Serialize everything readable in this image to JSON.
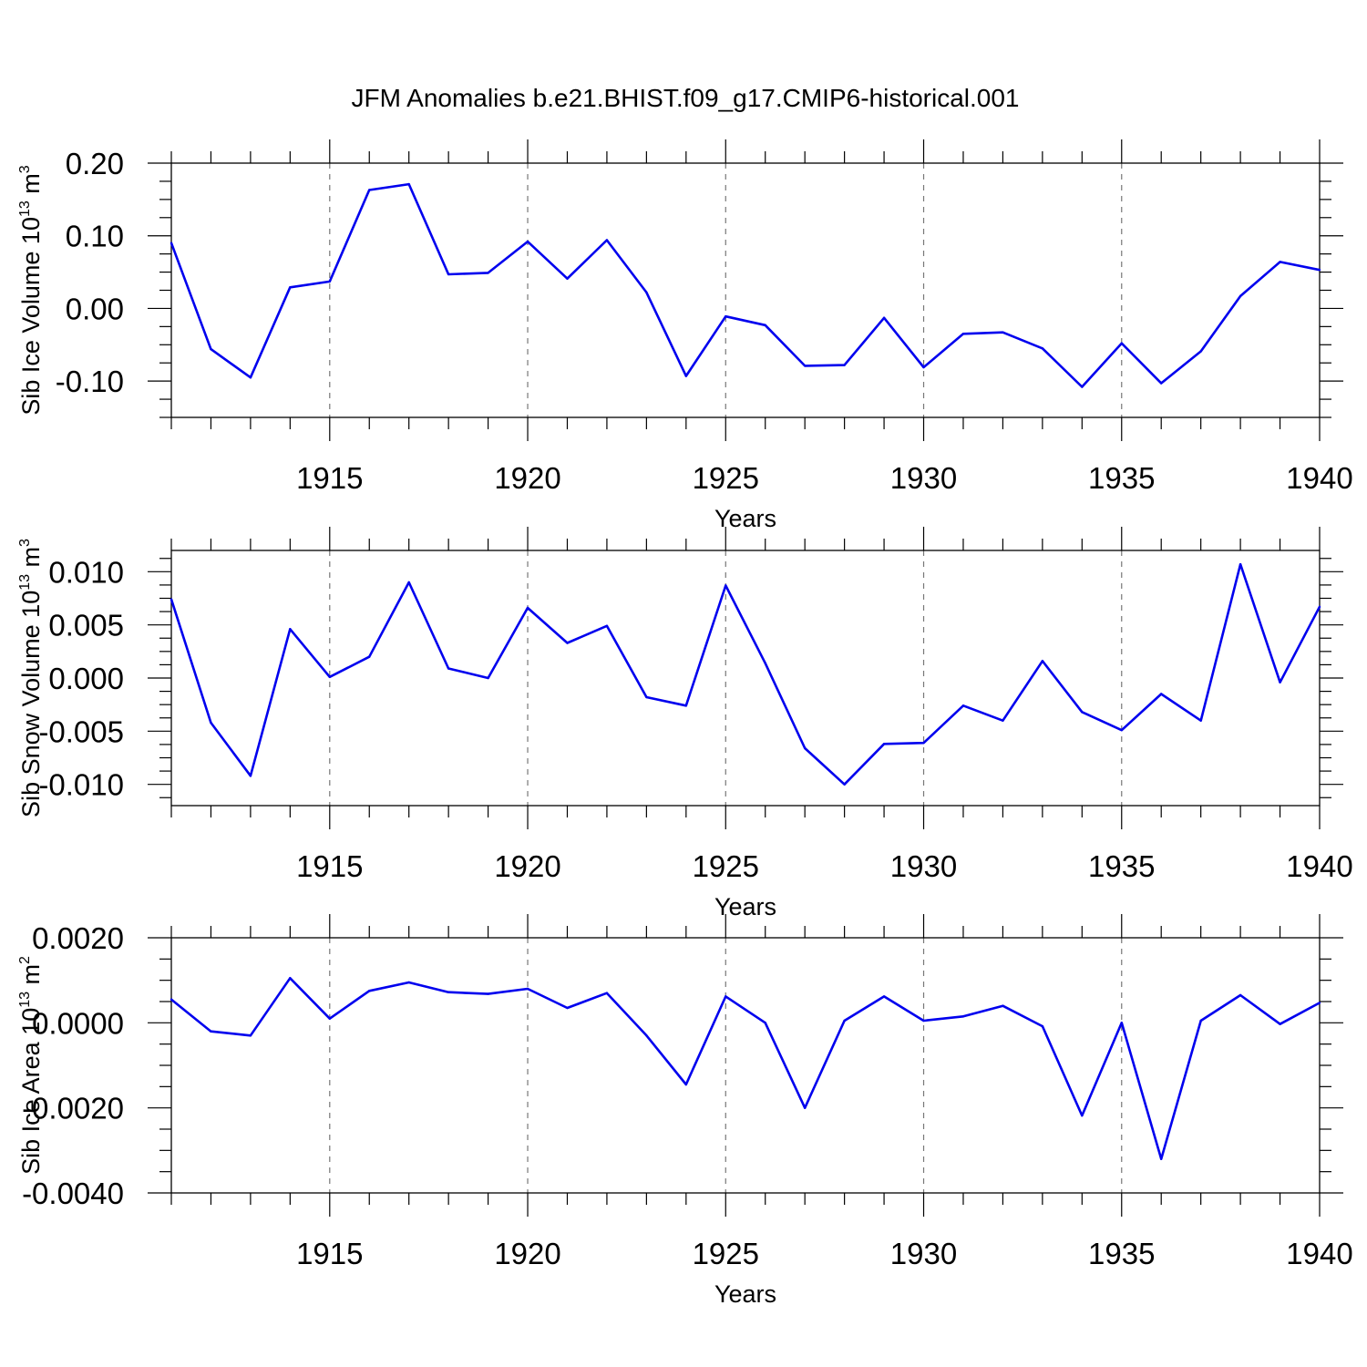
{
  "figure_title": "JFM Anomalies b.e21.BHIST.f09_g17.CMIP6-historical.001",
  "colors": {
    "line": "#0000ee",
    "grid": "#777777",
    "axis": "#000000"
  },
  "chart_data": [
    {
      "type": "line",
      "title": "",
      "xlabel": "Years",
      "ylabel": "Sib Ice Volume 10",
      "ylabel_sup": "13",
      "ylabel_unit": "m",
      "ylabel_unit_sup": "3",
      "xlim": [
        1911,
        1940
      ],
      "ylim": [
        -0.15,
        0.2
      ],
      "grid": "vertical dashed at major x ticks",
      "xticks": [
        1915,
        1920,
        1925,
        1930,
        1935,
        1940
      ],
      "xtick_labels": [
        "1915",
        "1920",
        "1925",
        "1930",
        "1935",
        "1940"
      ],
      "yticks": [
        0.2,
        0.1,
        0.0,
        -0.1
      ],
      "ytick_labels": [
        "0.20",
        "0.10",
        "0.00",
        "-0.10"
      ],
      "series": [
        {
          "name": "Sib Ice Volume",
          "x": [
            1911,
            1912,
            1913,
            1914,
            1915,
            1916,
            1917,
            1918,
            1919,
            1920,
            1921,
            1922,
            1923,
            1924,
            1925,
            1926,
            1927,
            1928,
            1929,
            1930,
            1931,
            1932,
            1933,
            1934,
            1935,
            1936,
            1937,
            1938,
            1939,
            1940
          ],
          "values": [
            0.09,
            -0.056,
            -0.095,
            0.029,
            0.037,
            0.163,
            0.171,
            0.047,
            0.049,
            0.092,
            0.041,
            0.094,
            0.022,
            -0.093,
            -0.011,
            -0.023,
            -0.079,
            -0.078,
            -0.013,
            -0.081,
            -0.035,
            -0.033,
            -0.055,
            -0.108,
            -0.048,
            -0.103,
            -0.059,
            0.017,
            0.064,
            0.053
          ]
        }
      ]
    },
    {
      "type": "line",
      "title": "",
      "xlabel": "Years",
      "ylabel": "Sib Snow Volume 10",
      "ylabel_sup": "13",
      "ylabel_unit": "m",
      "ylabel_unit_sup": "3",
      "xlim": [
        1911,
        1940
      ],
      "ylim": [
        -0.012,
        0.012
      ],
      "grid": "vertical dashed at major x ticks",
      "xticks": [
        1915,
        1920,
        1925,
        1930,
        1935,
        1940
      ],
      "xtick_labels": [
        "1915",
        "1920",
        "1925",
        "1930",
        "1935",
        "1940"
      ],
      "yticks": [
        0.01,
        0.005,
        0.0,
        -0.005,
        -0.01
      ],
      "ytick_labels": [
        "0.010",
        "0.005",
        "0.000",
        "-0.005",
        "-0.010"
      ],
      "series": [
        {
          "name": "Sib Snow Volume",
          "x": [
            1911,
            1912,
            1913,
            1914,
            1915,
            1916,
            1917,
            1918,
            1919,
            1920,
            1921,
            1922,
            1923,
            1924,
            1925,
            1926,
            1927,
            1928,
            1929,
            1930,
            1931,
            1932,
            1933,
            1934,
            1935,
            1936,
            1937,
            1938,
            1939,
            1940
          ],
          "values": [
            0.0074,
            -0.0042,
            -0.0092,
            0.0046,
            0.0001,
            0.002,
            0.009,
            0.0009,
            0.0,
            0.0066,
            0.0033,
            0.0049,
            -0.0018,
            -0.0026,
            0.0087,
            0.0014,
            -0.0066,
            -0.01,
            -0.0062,
            -0.0061,
            -0.0026,
            -0.004,
            0.0016,
            -0.0032,
            -0.0049,
            -0.0015,
            -0.004,
            0.0107,
            -0.0004,
            0.0067
          ]
        }
      ]
    },
    {
      "type": "line",
      "title": "",
      "xlabel": "Years",
      "ylabel": "Sib Ice Area 10",
      "ylabel_sup": "13",
      "ylabel_unit": "m",
      "ylabel_unit_sup": "2",
      "xlim": [
        1911,
        1940
      ],
      "ylim": [
        -0.004,
        0.002
      ],
      "grid": "vertical dashed at major x ticks",
      "xticks": [
        1915,
        1920,
        1925,
        1930,
        1935,
        1940
      ],
      "xtick_labels": [
        "1915",
        "1920",
        "1925",
        "1930",
        "1935",
        "1940"
      ],
      "yticks": [
        0.002,
        0.0,
        -0.002,
        -0.004
      ],
      "ytick_labels": [
        "0.0020",
        "0.0000",
        "-0.0020",
        "-0.0040"
      ],
      "series": [
        {
          "name": "Sib Ice Area",
          "x": [
            1911,
            1912,
            1913,
            1914,
            1915,
            1916,
            1917,
            1918,
            1919,
            1920,
            1921,
            1922,
            1923,
            1924,
            1925,
            1926,
            1927,
            1928,
            1929,
            1930,
            1931,
            1932,
            1933,
            1934,
            1935,
            1936,
            1937,
            1938,
            1939,
            1940
          ],
          "values": [
            0.00055,
            -0.0002,
            -0.0003,
            0.00105,
            0.0001,
            0.00075,
            0.00095,
            0.00072,
            0.00068,
            0.0008,
            0.00035,
            0.0007,
            -0.0003,
            -0.00145,
            0.00062,
            0.0,
            -0.002,
            5e-05,
            0.00062,
            5e-05,
            0.00015,
            0.0004,
            -8e-05,
            -0.00218,
            0.0,
            -0.0032,
            5e-05,
            0.00065,
            -3e-05,
            0.00047
          ]
        }
      ]
    }
  ]
}
